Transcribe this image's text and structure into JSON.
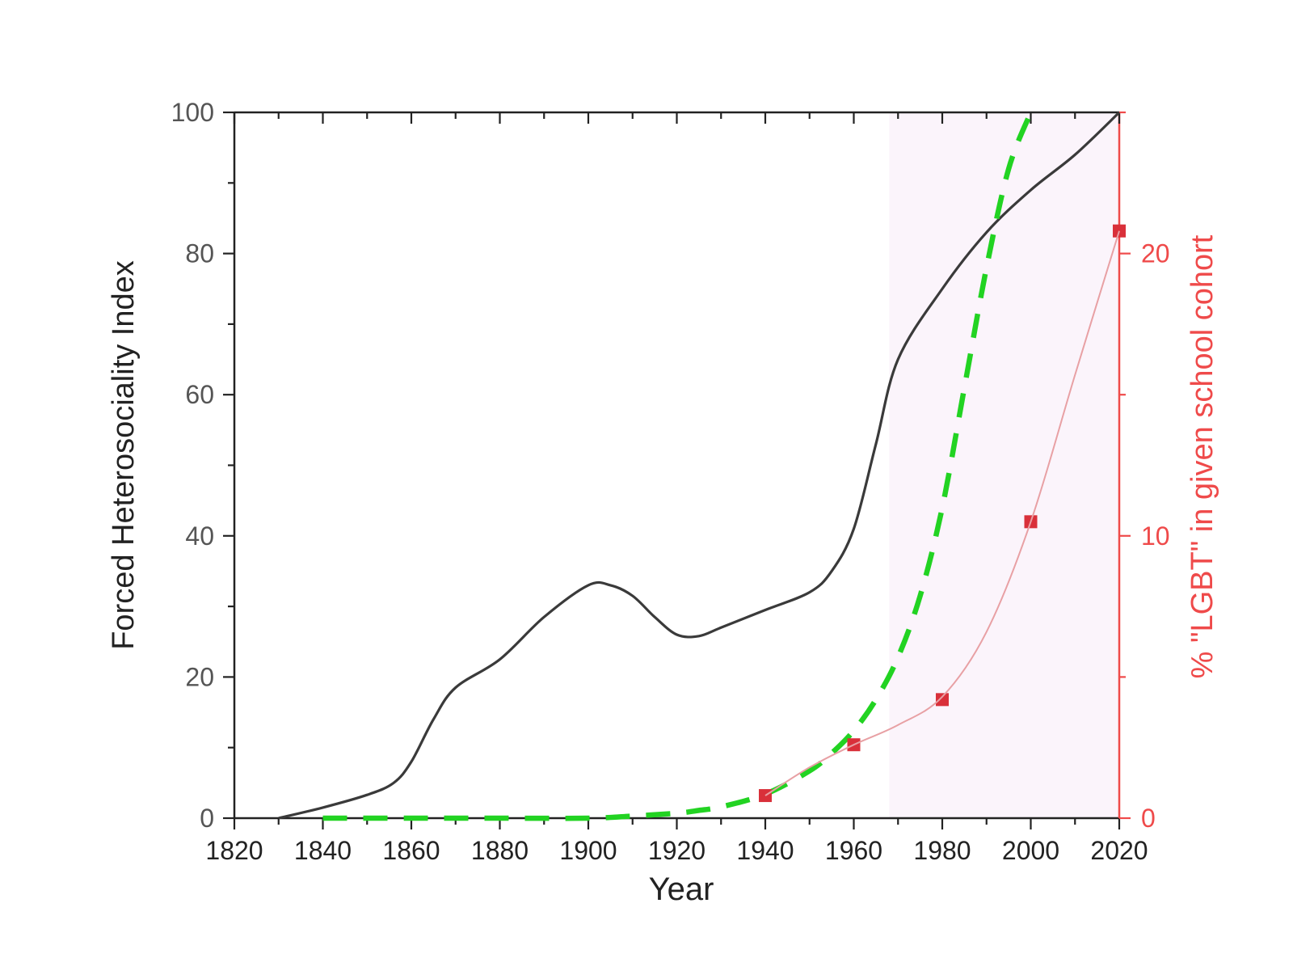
{
  "chart_data": {
    "type": "line",
    "title": "",
    "xlabel": "Year",
    "ylabel": "Forced Heterosociality Index",
    "y2label": "% \"LGBT\" in given school cohort",
    "xlim": [
      1820,
      2020
    ],
    "ylim": [
      0,
      100
    ],
    "y2lim": [
      0,
      25
    ],
    "x_ticks": [
      "1820",
      "1840",
      "1860",
      "1880",
      "1900",
      "1920",
      "1940",
      "1960",
      "1980",
      "2000",
      "2020"
    ],
    "y_ticks": [
      "0",
      "20",
      "40",
      "60",
      "80",
      "100"
    ],
    "y2_ticks": [
      "0",
      "10",
      "20"
    ],
    "shaded_region": {
      "x_start": 1968,
      "x_end": 2020,
      "color": "#fbf4fb"
    },
    "colors": {
      "index_line": "#3a3a3a",
      "dashed_line": "#22d322",
      "lgbt": "#d9303a",
      "lgbt_fit": "#e8a0a4",
      "left_axis": "#222222",
      "right_axis": "#ef4a4a",
      "left_tick_labels": "#555555"
    },
    "series": [
      {
        "key": "index",
        "axis": "left",
        "style": "solid",
        "x": [
          1830,
          1840,
          1850,
          1856,
          1860,
          1865,
          1870,
          1880,
          1890,
          1900,
          1905,
          1910,
          1915,
          1920,
          1925,
          1930,
          1940,
          1950,
          1955,
          1960,
          1965,
          1970,
          1980,
          1990,
          2000,
          2010,
          2020
        ],
        "y": [
          0,
          1.5,
          3.3,
          5,
          8,
          14,
          18.5,
          22.5,
          28.5,
          33,
          33,
          31.5,
          28.5,
          26,
          25.8,
          27,
          29.5,
          32,
          35,
          41,
          53,
          65,
          75,
          83,
          89,
          94,
          100
        ]
      },
      {
        "key": "exponential",
        "axis": "left",
        "style": "dashed",
        "x": [
          1840,
          1860,
          1880,
          1900,
          1910,
          1920,
          1925,
          1930,
          1940,
          1950,
          1955,
          1960,
          1965,
          1970,
          1975,
          1980,
          1985,
          1990,
          1995,
          2000
        ],
        "y": [
          0,
          0,
          0,
          0,
          0.3,
          0.7,
          1.1,
          1.6,
          3.4,
          6.7,
          9.2,
          12.4,
          16.8,
          22.8,
          31.5,
          44,
          61,
          78,
          92,
          100
        ]
      },
      {
        "key": "lgbt-points",
        "axis": "right",
        "style": "markers",
        "x": [
          1940,
          1960,
          1980,
          2000,
          2020
        ],
        "y": [
          0.8,
          2.6,
          4.2,
          10.5,
          20.8
        ]
      },
      {
        "key": "lgbt-fit",
        "axis": "right",
        "style": "thin",
        "x": [
          1940,
          1950,
          1960,
          1970,
          1980,
          1990,
          2000,
          2010,
          2020
        ],
        "y": [
          0.8,
          1.8,
          2.6,
          3.3,
          4.3,
          6.6,
          10.5,
          15.7,
          20.8
        ]
      }
    ]
  }
}
